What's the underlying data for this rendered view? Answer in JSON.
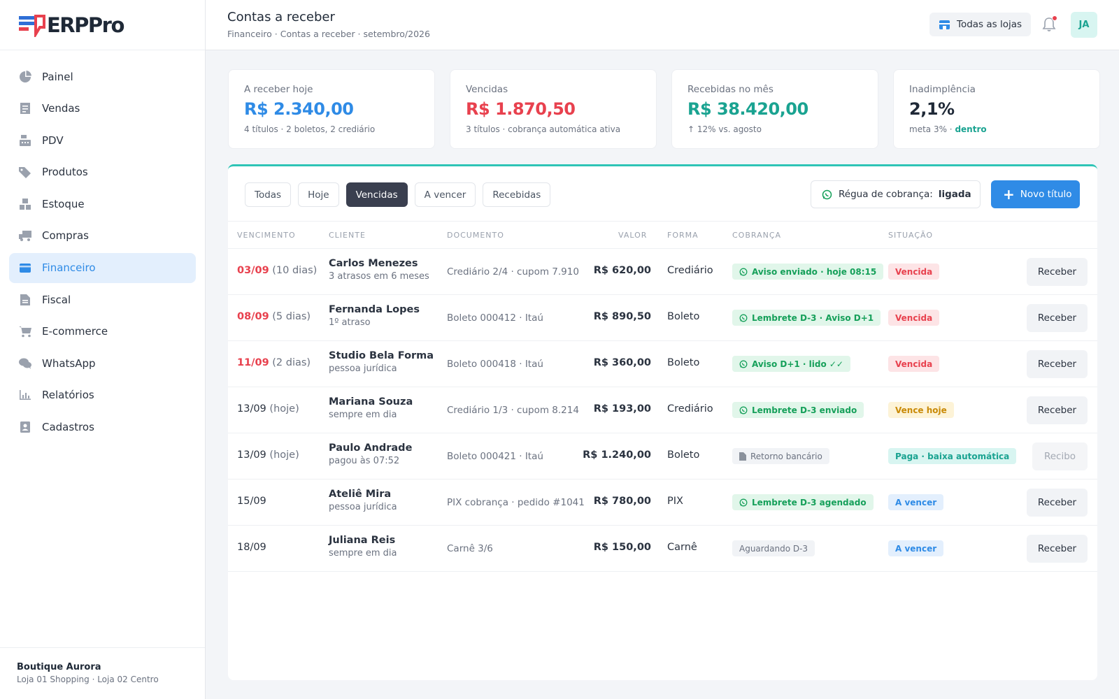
{
  "app": {
    "logo_text": "ERPPro"
  },
  "sidebar": {
    "items": [
      {
        "label": "Painel",
        "icon": "pie-chart-icon"
      },
      {
        "label": "Vendas",
        "icon": "receipt-icon"
      },
      {
        "label": "PDV",
        "icon": "cash-register-icon"
      },
      {
        "label": "Produtos",
        "icon": "tags-icon"
      },
      {
        "label": "Estoque",
        "icon": "boxes-icon"
      },
      {
        "label": "Compras",
        "icon": "truck-icon"
      },
      {
        "label": "Financeiro",
        "icon": "wallet-icon",
        "active": true
      },
      {
        "label": "Fiscal",
        "icon": "document-icon"
      },
      {
        "label": "E-commerce",
        "icon": "cart-icon"
      },
      {
        "label": "WhatsApp",
        "icon": "chat-icon"
      },
      {
        "label": "Relatórios",
        "icon": "bar-chart-icon"
      },
      {
        "label": "Cadastros",
        "icon": "contact-icon"
      }
    ],
    "footer": {
      "store_name": "Boutique Aurora",
      "store_sub": "Loja 01 Shopping · Loja 02 Centro"
    }
  },
  "header": {
    "title": "Contas a receber",
    "breadcrumb": "Financeiro · Contas a receber · setembro/2026",
    "store_select": "Todas as lojas",
    "avatar": "JA"
  },
  "kpis": [
    {
      "label": "A receber hoje",
      "value": "R$ 2.340,00",
      "sub": "4 títulos · 2 boletos, 2 crediário",
      "color": "#2f8be6"
    },
    {
      "label": "Vencidas",
      "value": "R$ 1.870,50",
      "sub": "3 títulos · cobrança automática ativa",
      "color": "#e8414e"
    },
    {
      "label": "Recebidas no mês",
      "value": "R$ 38.420,00",
      "sub": "↑ 12% vs. agosto",
      "color": "#1aa391"
    },
    {
      "label": "Inadimplência",
      "value": "2,1%",
      "sub": "meta 3% · ",
      "sub_bold": "dentro",
      "color": "#1f2937"
    }
  ],
  "filters": {
    "chips": [
      "Todas",
      "Hoje",
      "Vencidas",
      "A vencer",
      "Recebidas"
    ],
    "active": "Vencidas",
    "regua_label": "Régua de cobrança:",
    "regua_value": "ligada",
    "novo_label": "Novo título"
  },
  "table": {
    "headers": [
      "VENCIMENTO",
      "CLIENTE",
      "DOCUMENTO",
      "VALOR",
      "FORMA",
      "COBRANÇA",
      "SITUAÇÃO"
    ],
    "rows": [
      {
        "date": "03/09",
        "rel": " (10 dias)",
        "late": true,
        "client": "Carlos Menezes",
        "client_sub": "3 atrasos em 6 meses",
        "doc": "Crediário 2/4 · cupom 7.910",
        "value": "R$ 620,00",
        "forma": "Crediário",
        "cob": "Aviso enviado · hoje 08:15",
        "cob_type": "green",
        "sit": "Vencida",
        "sit_type": "red",
        "action": "Receber"
      },
      {
        "date": "08/09",
        "rel": " (5 dias)",
        "late": true,
        "client": "Fernanda Lopes",
        "client_sub": "1º atraso",
        "doc": "Boleto 000412 · Itaú",
        "value": "R$ 890,50",
        "forma": "Boleto",
        "cob": "Lembrete D-3 · Aviso D+1",
        "cob_type": "green",
        "sit": "Vencida",
        "sit_type": "red",
        "action": "Receber"
      },
      {
        "date": "11/09",
        "rel": " (2 dias)",
        "late": true,
        "client": "Studio Bela Forma",
        "client_sub": "pessoa jurídica",
        "doc": "Boleto 000418 · Itaú",
        "value": "R$ 360,00",
        "forma": "Boleto",
        "cob": "Aviso D+1 · lido ✓✓",
        "cob_type": "green",
        "sit": "Vencida",
        "sit_type": "red",
        "action": "Receber"
      },
      {
        "date": "13/09",
        "rel": " (hoje)",
        "late": false,
        "client": "Mariana Souza",
        "client_sub": "sempre em dia",
        "doc": "Crediário 1/3 · cupom 8.214",
        "value": "R$ 193,00",
        "forma": "Crediário",
        "cob": "Lembrete D-3 enviado",
        "cob_type": "green",
        "sit": "Vence hoje",
        "sit_type": "yellow",
        "action": "Receber"
      },
      {
        "date": "13/09",
        "rel": " (hoje)",
        "late": false,
        "client": "Paulo Andrade",
        "client_sub": "pagou às 07:52",
        "doc": "Boleto 000421 · Itaú",
        "value": "R$ 1.240,00",
        "forma": "Boleto",
        "cob": "Retorno bancário",
        "cob_type": "gray-doc",
        "sit": "Paga · baixa automática",
        "sit_type": "teal",
        "action": "Recibo",
        "action_muted": true
      },
      {
        "date": "15/09",
        "rel": "",
        "late": false,
        "client": "Ateliê Mira",
        "client_sub": "pessoa jurídica",
        "doc": "PIX cobrança · pedido #1041",
        "value": "R$ 780,00",
        "forma": "PIX",
        "cob": "Lembrete D-3 agendado",
        "cob_type": "green",
        "sit": "A vencer",
        "sit_type": "blue",
        "action": "Receber"
      },
      {
        "date": "18/09",
        "rel": "",
        "late": false,
        "client": "Juliana Reis",
        "client_sub": "sempre em dia",
        "doc": "Carnê 3/6",
        "value": "R$ 150,00",
        "forma": "Carnê",
        "cob": "Aguardando D-3",
        "cob_type": "gray",
        "sit": "A vencer",
        "sit_type": "blue",
        "action": "Receber"
      }
    ]
  }
}
